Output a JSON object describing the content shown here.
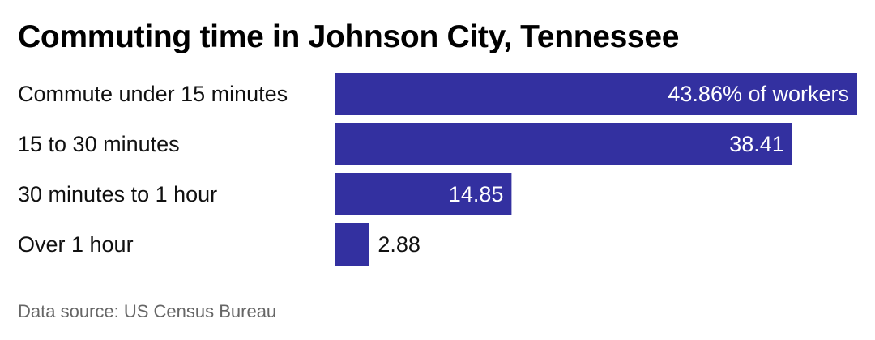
{
  "title": "Commuting time in Johnson City, Tennessee",
  "source": "Data source: US Census Bureau",
  "chart_data": {
    "type": "bar",
    "orientation": "horizontal",
    "title": "Commuting time in Johnson City, Tennessee",
    "categories": [
      "Commute under 15 minutes",
      "15 to 30 minutes",
      "30 minutes to 1 hour",
      "Over 1 hour"
    ],
    "values": [
      43.86,
      38.41,
      14.85,
      2.88
    ],
    "value_labels": [
      "43.86% of workers",
      "38.41",
      "14.85",
      "2.88"
    ],
    "unit": "% of workers",
    "xlim": [
      0,
      43.86
    ],
    "grid": false,
    "legend": "none",
    "bar_color": "#3330A0"
  }
}
